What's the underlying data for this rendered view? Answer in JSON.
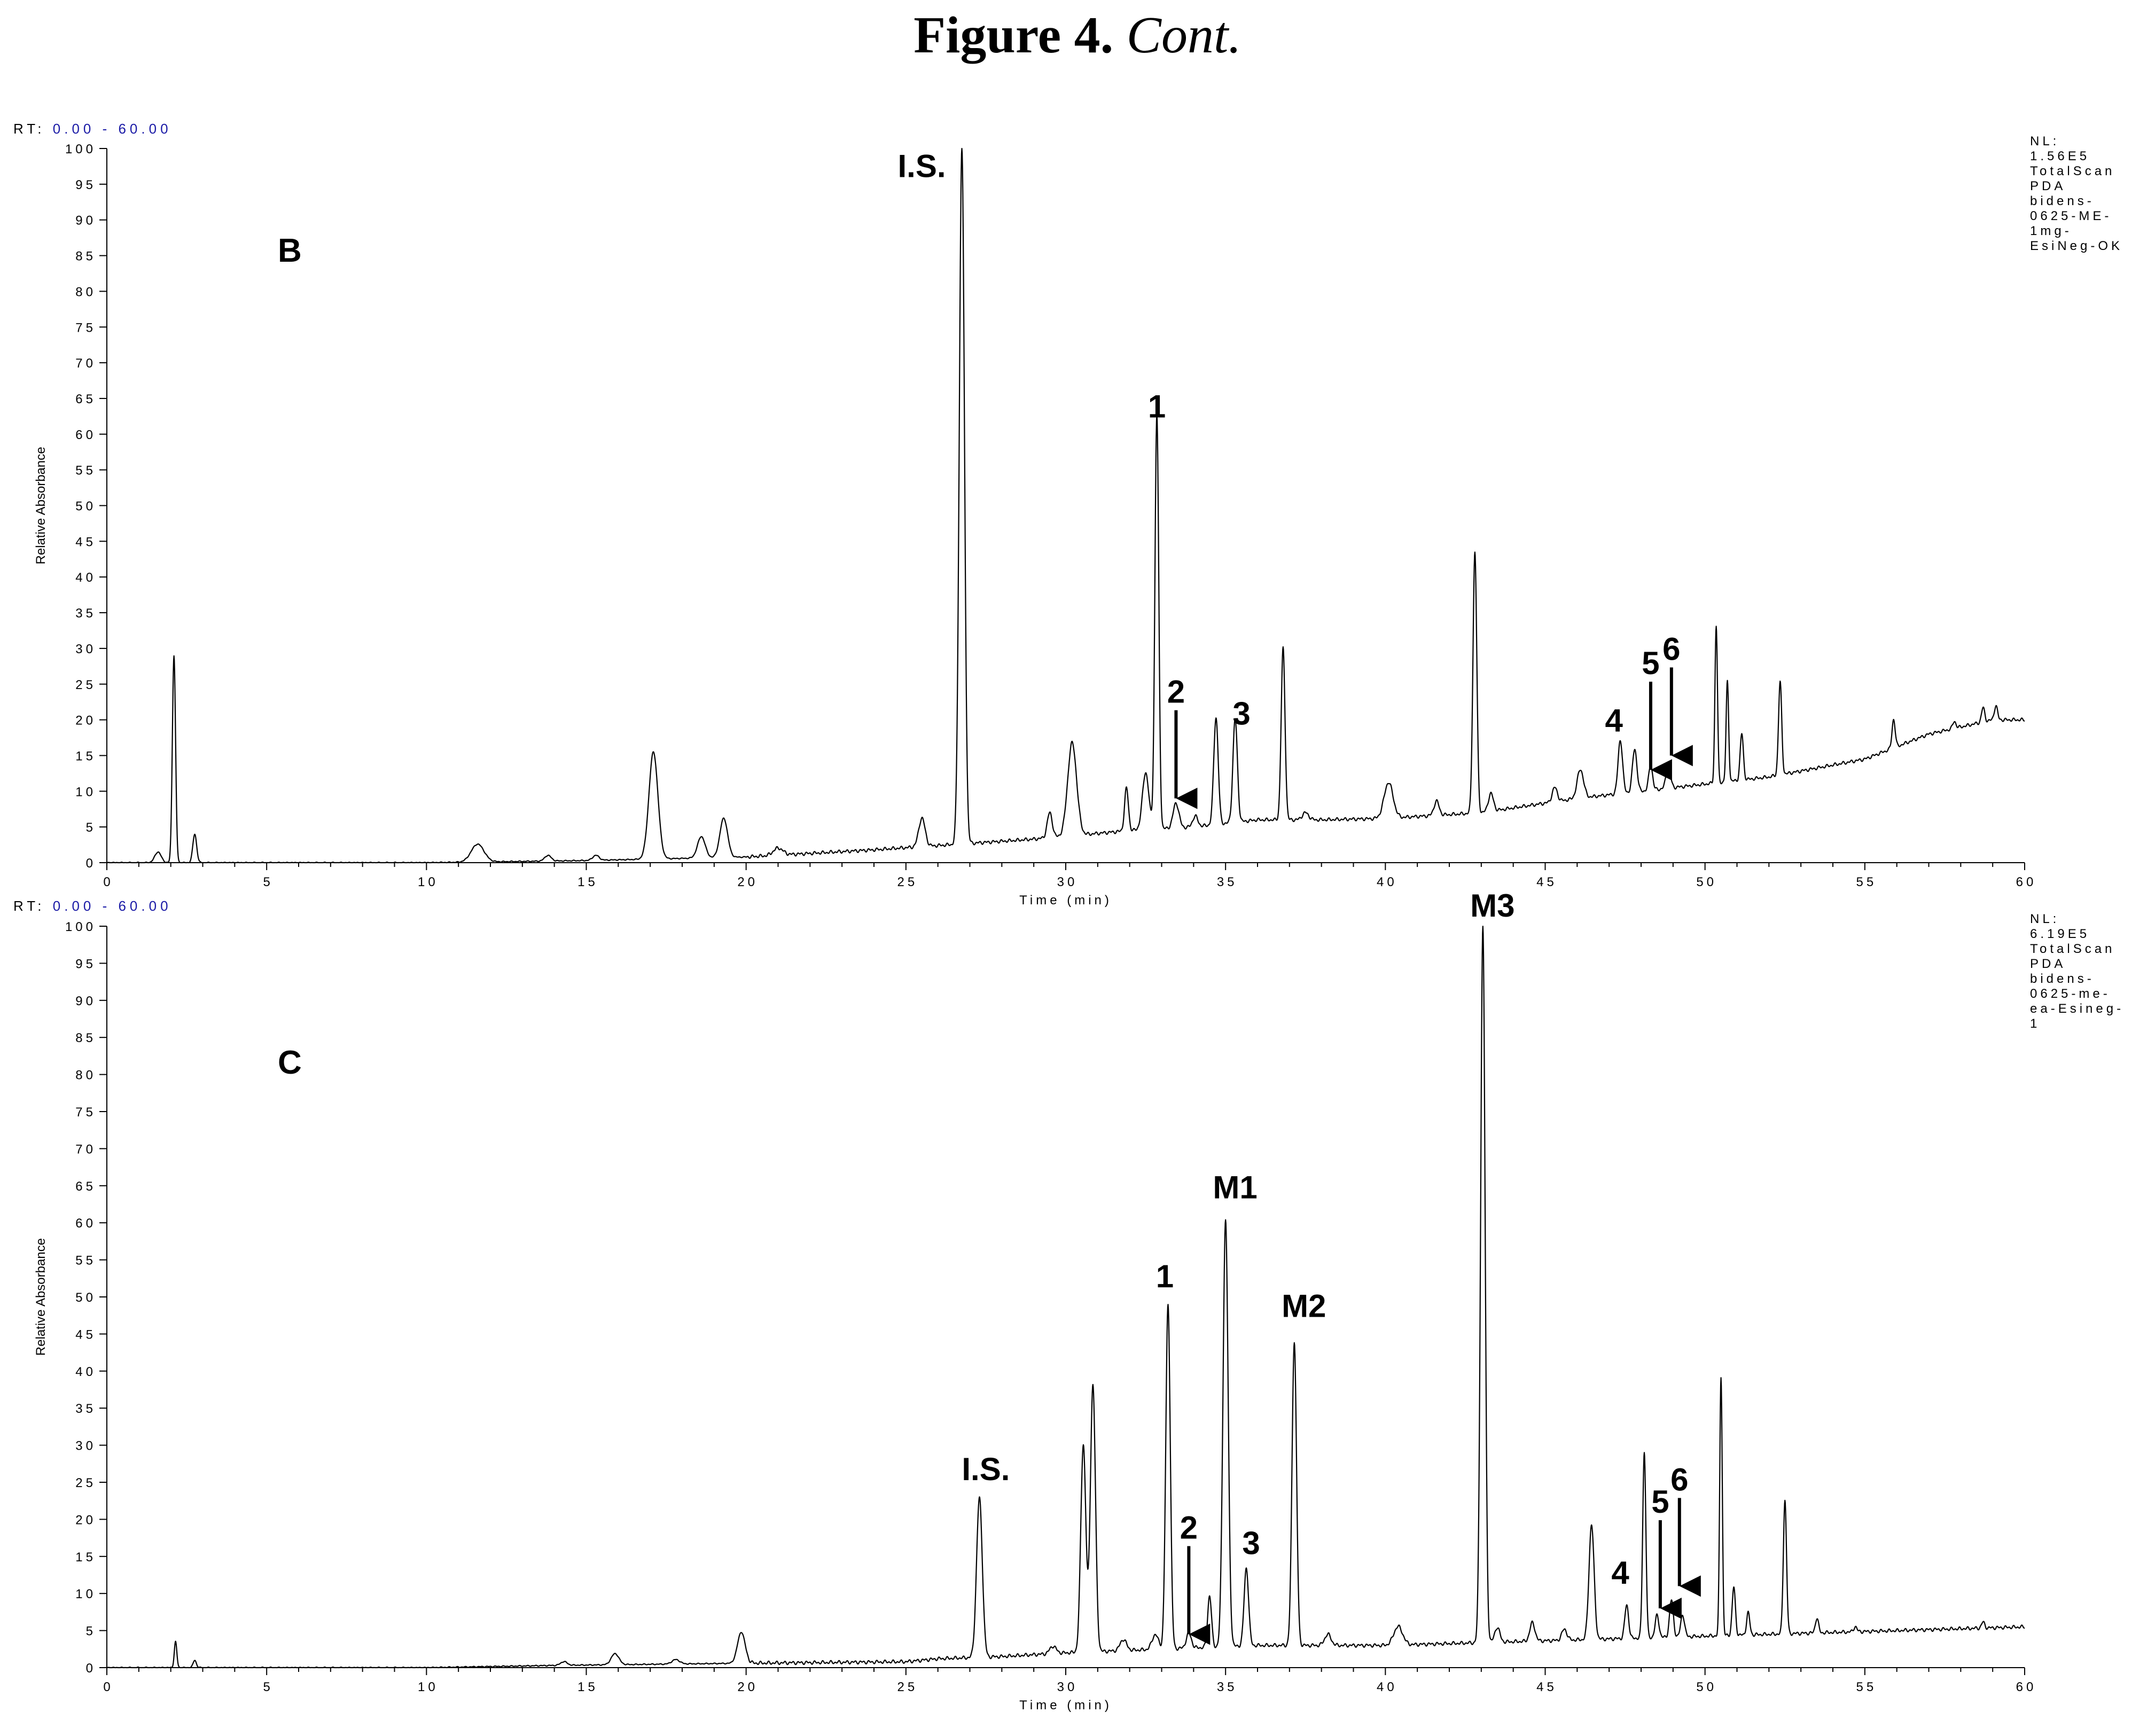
{
  "figure": {
    "title_bold": "Figure 4.",
    "title_italic": "Cont",
    "title_tail": "."
  },
  "chart_data": [
    {
      "type": "line",
      "panel": "B",
      "rt_prefix": "RT:",
      "rt_range": "0.00 - 60.00",
      "xlabel": "Time (min)",
      "ylabel": "Relative Absorbance",
      "xlim": [
        0,
        60
      ],
      "ylim": [
        0,
        100
      ],
      "x_ticks": [
        0,
        5,
        10,
        15,
        20,
        25,
        30,
        35,
        40,
        45,
        50,
        55,
        60
      ],
      "y_ticks": [
        0,
        5,
        10,
        15,
        20,
        25,
        30,
        35,
        40,
        45,
        50,
        55,
        60,
        65,
        70,
        75,
        80,
        85,
        90,
        95,
        100
      ],
      "nl_info": [
        "NL:",
        "1.56E5",
        "TotalScan",
        "PDA",
        "bidens-",
        "0625-ME-",
        "1mg-",
        "EsiNeg-OK"
      ],
      "baseline": [
        [
          0,
          0
        ],
        [
          2,
          0
        ],
        [
          5,
          0
        ],
        [
          10,
          0
        ],
        [
          15,
          0.3
        ],
        [
          20,
          0.8
        ],
        [
          24,
          1.8
        ],
        [
          28,
          3
        ],
        [
          29,
          3.3
        ],
        [
          32,
          4.5
        ],
        [
          34,
          5
        ],
        [
          36,
          6
        ],
        [
          38,
          6
        ],
        [
          40,
          6.2
        ],
        [
          43,
          7
        ],
        [
          46,
          9
        ],
        [
          49,
          10.5
        ],
        [
          52,
          12
        ],
        [
          55,
          14.5
        ],
        [
          57,
          18
        ],
        [
          59,
          20
        ],
        [
          60,
          20
        ]
      ],
      "peaks": [
        {
          "rt": 1.6,
          "h": 1.5,
          "w": 0.1
        },
        {
          "rt": 2.1,
          "h": 29,
          "w": 0.05
        },
        {
          "rt": 2.75,
          "h": 4,
          "w": 0.06
        },
        {
          "rt": 11.6,
          "h": 2.5,
          "w": 0.2
        },
        {
          "rt": 13.8,
          "h": 0.8,
          "w": 0.1
        },
        {
          "rt": 15.3,
          "h": 0.7,
          "w": 0.1
        },
        {
          "rt": 17.1,
          "h": 15,
          "w": 0.14
        },
        {
          "rt": 18.6,
          "h": 3,
          "w": 0.12
        },
        {
          "rt": 19.3,
          "h": 5.5,
          "w": 0.12
        },
        {
          "rt": 21.0,
          "h": 1,
          "w": 0.15
        },
        {
          "rt": 25.5,
          "h": 4,
          "w": 0.1
        },
        {
          "rt": 26.75,
          "h": 97.5,
          "w": 0.08
        },
        {
          "rt": 29.5,
          "h": 3.5,
          "w": 0.08
        },
        {
          "rt": 30.2,
          "h": 13,
          "w": 0.14
        },
        {
          "rt": 31.9,
          "h": 6,
          "w": 0.06
        },
        {
          "rt": 32.5,
          "h": 8,
          "w": 0.1
        },
        {
          "rt": 32.85,
          "h": 58,
          "w": 0.06
        },
        {
          "rt": 33.45,
          "h": 3.5,
          "w": 0.09
        },
        {
          "rt": 34.05,
          "h": 1.5,
          "w": 0.08
        },
        {
          "rt": 34.7,
          "h": 15,
          "w": 0.07
        },
        {
          "rt": 35.3,
          "h": 14.5,
          "w": 0.07
        },
        {
          "rt": 36.8,
          "h": 24,
          "w": 0.06
        },
        {
          "rt": 37.5,
          "h": 1,
          "w": 0.1
        },
        {
          "rt": 40.1,
          "h": 5,
          "w": 0.14
        },
        {
          "rt": 41.6,
          "h": 2,
          "w": 0.08
        },
        {
          "rt": 42.8,
          "h": 36.5,
          "w": 0.06
        },
        {
          "rt": 43.3,
          "h": 2.5,
          "w": 0.08
        },
        {
          "rt": 45.3,
          "h": 2,
          "w": 0.08
        },
        {
          "rt": 46.1,
          "h": 4,
          "w": 0.1
        },
        {
          "rt": 47.35,
          "h": 7.5,
          "w": 0.07
        },
        {
          "rt": 47.8,
          "h": 6,
          "w": 0.07
        },
        {
          "rt": 48.3,
          "h": 3.5,
          "w": 0.06
        },
        {
          "rt": 48.85,
          "h": 3,
          "w": 0.07
        },
        {
          "rt": 50.35,
          "h": 22,
          "w": 0.04
        },
        {
          "rt": 50.7,
          "h": 14,
          "w": 0.04
        },
        {
          "rt": 51.15,
          "h": 6.5,
          "w": 0.05
        },
        {
          "rt": 52.35,
          "h": 13,
          "w": 0.05
        },
        {
          "rt": 55.9,
          "h": 4,
          "w": 0.05
        },
        {
          "rt": 57.8,
          "h": 1,
          "w": 0.05
        },
        {
          "rt": 58.7,
          "h": 2,
          "w": 0.05
        },
        {
          "rt": 59.1,
          "h": 2,
          "w": 0.05
        }
      ],
      "annotations": [
        {
          "label": "I.S.",
          "rt": 26.75,
          "y": 97.5,
          "arrow": false,
          "x_off": -1.5
        },
        {
          "label": "1",
          "rt": 32.85,
          "y": 61,
          "arrow": false,
          "x_off": 0
        },
        {
          "label": "2",
          "rt": 33.45,
          "y": 9,
          "arrow": true,
          "x_off": 0
        },
        {
          "label": "3",
          "rt": 35.3,
          "y": 18,
          "arrow": false,
          "x_off": 0.2
        },
        {
          "label": "4",
          "rt": 47.35,
          "y": 17,
          "arrow": false,
          "x_off": -0.2
        },
        {
          "label": "5",
          "rt": 48.3,
          "y": 13,
          "arrow": true,
          "x_off": 0
        },
        {
          "label": "6",
          "rt": 48.95,
          "y": 15,
          "arrow": true,
          "x_off": 0
        }
      ]
    },
    {
      "type": "line",
      "panel": "C",
      "rt_prefix": "RT:",
      "rt_range": "0.00 - 60.00",
      "xlabel": "Time (min)",
      "ylabel": "Relative Absorbance",
      "xlim": [
        0,
        60
      ],
      "ylim": [
        0,
        100
      ],
      "x_ticks": [
        0,
        5,
        10,
        15,
        20,
        25,
        30,
        35,
        40,
        45,
        50,
        55,
        60
      ],
      "y_ticks": [
        0,
        5,
        10,
        15,
        20,
        25,
        30,
        35,
        40,
        45,
        50,
        55,
        60,
        65,
        70,
        75,
        80,
        85,
        90,
        95,
        100
      ],
      "nl_info": [
        "NL:",
        "6.19E5",
        "TotalScan",
        "PDA",
        "bidens-",
        "0625-me-",
        "ea-Esineg-",
        "1"
      ],
      "baseline": [
        [
          0,
          0
        ],
        [
          10,
          0
        ],
        [
          14,
          0.3
        ],
        [
          18,
          0.5
        ],
        [
          20,
          0.6
        ],
        [
          25,
          0.8
        ],
        [
          26,
          1.2
        ],
        [
          28,
          1.5
        ],
        [
          30,
          2
        ],
        [
          33,
          2.5
        ],
        [
          36,
          3
        ],
        [
          40,
          3
        ],
        [
          44,
          3.5
        ],
        [
          48,
          4
        ],
        [
          52,
          4.5
        ],
        [
          56,
          5
        ],
        [
          60,
          5.5
        ]
      ],
      "peaks": [
        {
          "rt": 2.15,
          "h": 3.5,
          "w": 0.04
        },
        {
          "rt": 2.75,
          "h": 1,
          "w": 0.05
        },
        {
          "rt": 14.3,
          "h": 0.5,
          "w": 0.1
        },
        {
          "rt": 15.9,
          "h": 1.5,
          "w": 0.12
        },
        {
          "rt": 17.8,
          "h": 0.6,
          "w": 0.12
        },
        {
          "rt": 19.85,
          "h": 4.2,
          "w": 0.12
        },
        {
          "rt": 27.3,
          "h": 21.5,
          "w": 0.09
        },
        {
          "rt": 29.6,
          "h": 1,
          "w": 0.1
        },
        {
          "rt": 30.55,
          "h": 28,
          "w": 0.08
        },
        {
          "rt": 30.85,
          "h": 36,
          "w": 0.08
        },
        {
          "rt": 31.8,
          "h": 1.5,
          "w": 0.1
        },
        {
          "rt": 32.8,
          "h": 2,
          "w": 0.1
        },
        {
          "rt": 33.2,
          "h": 46.5,
          "w": 0.07
        },
        {
          "rt": 33.85,
          "h": 2,
          "w": 0.08
        },
        {
          "rt": 34.5,
          "h": 7,
          "w": 0.06
        },
        {
          "rt": 35.0,
          "h": 57.5,
          "w": 0.08
        },
        {
          "rt": 35.65,
          "h": 10.5,
          "w": 0.07
        },
        {
          "rt": 37.15,
          "h": 41,
          "w": 0.07
        },
        {
          "rt": 38.2,
          "h": 1.5,
          "w": 0.1
        },
        {
          "rt": 40.4,
          "h": 2.5,
          "w": 0.14
        },
        {
          "rt": 43.05,
          "h": 96.5,
          "w": 0.07
        },
        {
          "rt": 43.5,
          "h": 2,
          "w": 0.08
        },
        {
          "rt": 44.6,
          "h": 2.5,
          "w": 0.08
        },
        {
          "rt": 45.6,
          "h": 1.5,
          "w": 0.08
        },
        {
          "rt": 46.45,
          "h": 15.5,
          "w": 0.08
        },
        {
          "rt": 47.55,
          "h": 4.5,
          "w": 0.06
        },
        {
          "rt": 48.1,
          "h": 25,
          "w": 0.05
        },
        {
          "rt": 48.5,
          "h": 3,
          "w": 0.06
        },
        {
          "rt": 48.95,
          "h": 5,
          "w": 0.06
        },
        {
          "rt": 49.3,
          "h": 3,
          "w": 0.06
        },
        {
          "rt": 50.5,
          "h": 35,
          "w": 0.04
        },
        {
          "rt": 50.9,
          "h": 6.5,
          "w": 0.05
        },
        {
          "rt": 51.35,
          "h": 3,
          "w": 0.05
        },
        {
          "rt": 52.5,
          "h": 18,
          "w": 0.05
        },
        {
          "rt": 53.5,
          "h": 2,
          "w": 0.05
        },
        {
          "rt": 54.7,
          "h": 0.7,
          "w": 0.05
        },
        {
          "rt": 58.7,
          "h": 0.8,
          "w": 0.05
        }
      ],
      "annotations": [
        {
          "label": "I.S.",
          "rt": 27.3,
          "y": 24,
          "arrow": false,
          "x_off": 0.2
        },
        {
          "label": "1",
          "rt": 33.2,
          "y": 50,
          "arrow": false,
          "x_off": -0.1
        },
        {
          "label": "M1",
          "rt": 35.0,
          "y": 62,
          "arrow": false,
          "x_off": 0.3
        },
        {
          "label": "M2",
          "rt": 37.15,
          "y": 46,
          "arrow": false,
          "x_off": 0.3
        },
        {
          "label": "M3",
          "rt": 43.05,
          "y": 100,
          "arrow": false,
          "x_off": 0.3
        },
        {
          "label": "2",
          "rt": 33.85,
          "y": 4.5,
          "arrow": true,
          "x_off": 0
        },
        {
          "label": "3",
          "rt": 35.65,
          "y": 14,
          "arrow": false,
          "x_off": 0.15
        },
        {
          "label": "4",
          "rt": 47.55,
          "y": 10,
          "arrow": false,
          "x_off": -0.2
        },
        {
          "label": "5",
          "rt": 48.6,
          "y": 8,
          "arrow": true,
          "x_off": 0
        },
        {
          "label": "6",
          "rt": 49.2,
          "y": 11,
          "arrow": true,
          "x_off": 0
        }
      ]
    }
  ]
}
